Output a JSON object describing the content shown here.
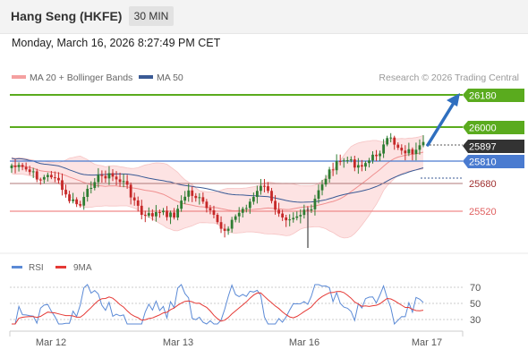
{
  "header": {
    "title": "Hang Seng (HKFE)",
    "timeframe": "30 MIN"
  },
  "datetime": "Monday, March 16, 2026 8:27:49 PM CET",
  "legend": {
    "ma20_bb": "MA 20 + Bollinger Bands",
    "ma50": "MA 50",
    "credit": "Research © 2026 Trading Central"
  },
  "levels": {
    "r2": "26180",
    "r1": "26000",
    "last": "25897",
    "pivot": "25810",
    "s1": "25680",
    "s2": "25520"
  },
  "indicator_legend": {
    "rsi": "RSI",
    "ma9": "9MA"
  },
  "rsi_ticks": [
    "70",
    "50",
    "30"
  ],
  "x_ticks": [
    "Mar 12",
    "Mar 13",
    "Mar 16",
    "Mar 17"
  ],
  "colors": {
    "resistance": "#5aab1e",
    "pivot": "#4a7bd0",
    "support": "#f08a8a",
    "last_price_bg": "#333333",
    "arrow": "#2f6fbf",
    "bollinger_fill": "#fde3e3",
    "ma20": "#f4a0a0",
    "ma50": "#3a5a95",
    "candle_up": "#2e7d32",
    "candle_down": "#c62828",
    "rsi_line": "#5b8ad6",
    "rsi_ma": "#e53935"
  },
  "chart_data": {
    "type": "candlestick",
    "x_labels": [
      "Mar 12",
      "Mar 13",
      "Mar 16",
      "Mar 17"
    ],
    "price_axis_labels": [
      26180,
      26000,
      25897,
      25810,
      25680,
      25520
    ],
    "resistance": [
      26000,
      26180
    ],
    "pivot": 25810,
    "support": [
      25680,
      25520
    ],
    "last_price": 25897,
    "price_range_approx": [
      25380,
      26200
    ],
    "indicators": {
      "rsi": {
        "axis_ticks": [
          30,
          50,
          70
        ]
      },
      "ma9_of_rsi": true,
      "overlays": [
        "MA 20",
        "Bollinger Bands",
        "MA 50"
      ]
    }
  }
}
